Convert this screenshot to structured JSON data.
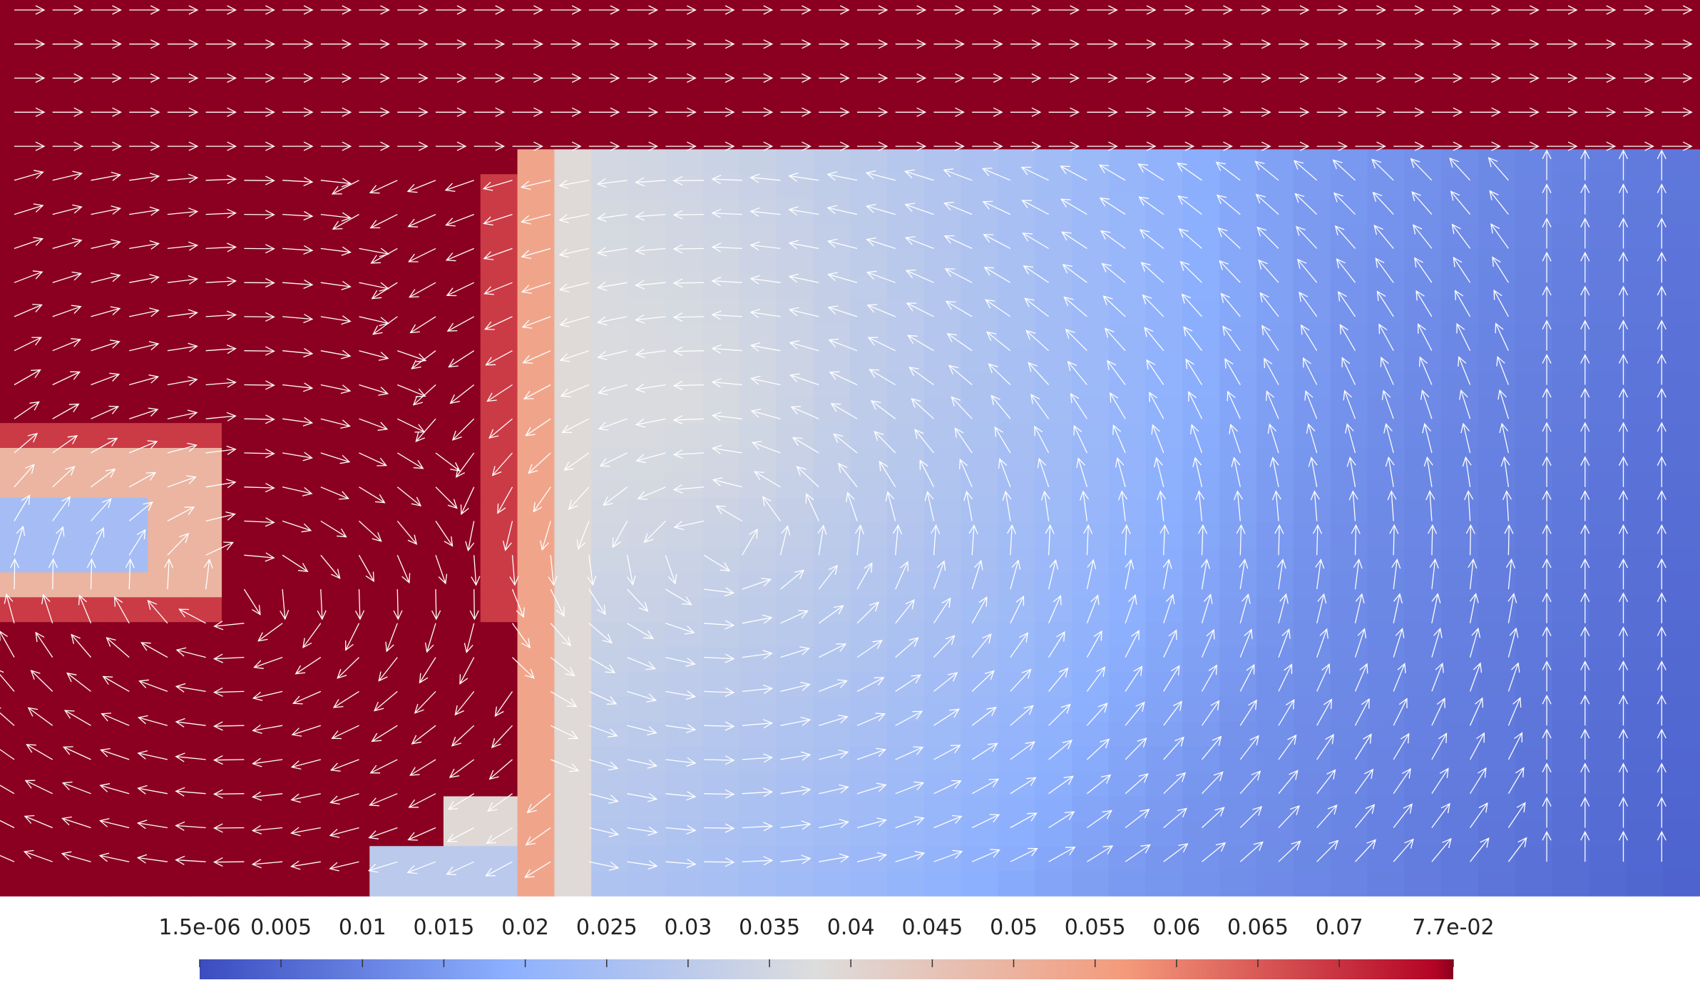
{
  "chart_data": {
    "type": "heatmap",
    "subtype": "vector-field-glyphs-over-scalar-field",
    "colormap": "Cool to Warm",
    "colormap_stops": [
      "#3b4cc0",
      "#8db0fe",
      "#dddddd",
      "#f49a7b",
      "#b40426"
    ],
    "saturated_color": "#8b0020",
    "arrow_color": "#ffffff",
    "scalar_range": [
      1.5e-06,
      0.077
    ],
    "colorbar": {
      "orientation": "horizontal",
      "placement": "bottom",
      "ticks": [
        {
          "value": 1.5e-06,
          "label": "1.5e-06"
        },
        {
          "value": 0.005,
          "label": "0.005"
        },
        {
          "value": 0.01,
          "label": "0.01"
        },
        {
          "value": 0.015,
          "label": "0.015"
        },
        {
          "value": 0.02,
          "label": "0.02"
        },
        {
          "value": 0.025,
          "label": "0.025"
        },
        {
          "value": 0.03,
          "label": "0.03"
        },
        {
          "value": 0.035,
          "label": "0.035"
        },
        {
          "value": 0.04,
          "label": "0.04"
        },
        {
          "value": 0.045,
          "label": "0.045"
        },
        {
          "value": 0.05,
          "label": "0.05"
        },
        {
          "value": 0.055,
          "label": "0.055"
        },
        {
          "value": 0.06,
          "label": "0.06"
        },
        {
          "value": 0.065,
          "label": "0.065"
        },
        {
          "value": 0.07,
          "label": "0.07"
        },
        {
          "value": 0.077,
          "label": "7.7e-02"
        }
      ]
    },
    "field": {
      "background_value": 0.09,
      "regions": [
        {
          "name": "right-block",
          "value_min": 0.004,
          "value_max": 0.03
        },
        {
          "name": "top-edge-band",
          "value": 0.065
        },
        {
          "name": "left-notch-core",
          "value": 0.025
        },
        {
          "name": "left-notch-rim",
          "value": 0.05
        },
        {
          "name": "bottom-steps",
          "value": 0.03
        }
      ]
    },
    "vector_field": {
      "description_source": "glyph directions read from image",
      "vortex_centers_fraction": [
        [
          0.14,
          0.66
        ],
        [
          0.42,
          0.61
        ]
      ]
    }
  }
}
